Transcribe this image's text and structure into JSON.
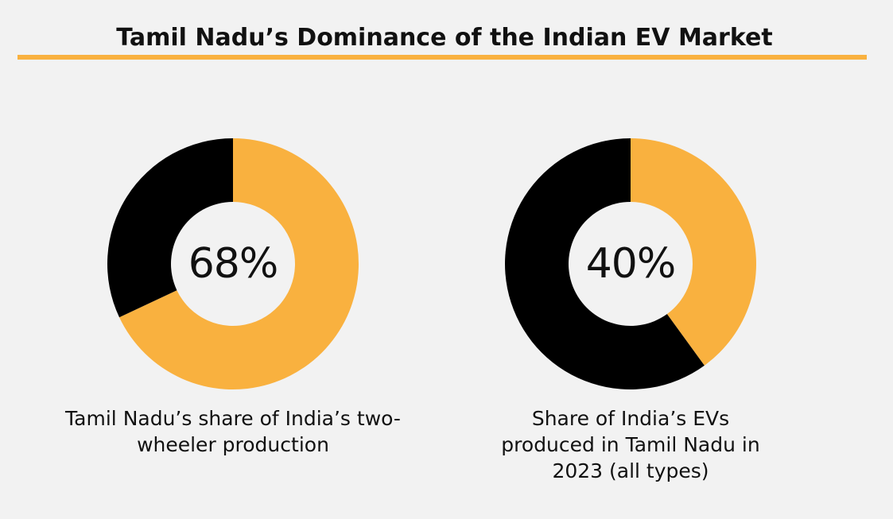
{
  "title": "Tamil Nadu’s Dominance of the Indian EV Market",
  "colors": {
    "highlight": "#f9b13f",
    "remainder": "#000000",
    "background": "#f2f2f2",
    "text": "#111111"
  },
  "chart_data": [
    {
      "type": "pie",
      "title": "",
      "center_label": "68%",
      "caption": "Tamil Nadu’s share of India’s two-wheeler production",
      "slices": [
        {
          "value": 68,
          "color": "#f9b13f"
        },
        {
          "value": 32,
          "color": "#000000"
        }
      ],
      "legend": "none"
    },
    {
      "type": "pie",
      "title": "",
      "center_label": "40%",
      "caption": "Share of India’s EVs produced in Tamil Nadu in 2023 (all types)",
      "slices": [
        {
          "value": 40,
          "color": "#f9b13f"
        },
        {
          "value": 60,
          "color": "#000000"
        }
      ],
      "legend": "none"
    }
  ]
}
